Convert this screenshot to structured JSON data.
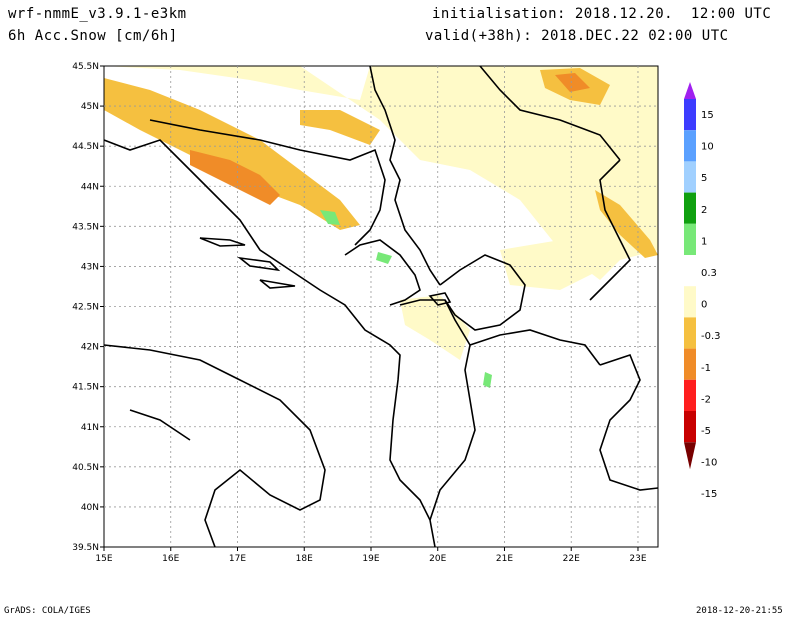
{
  "header": {
    "model": "wrf-nmmE_v3.9.1-e3km",
    "variable": "6h Acc.Snow [cm/6h]",
    "initialisation": "initialisation: 2018.12.20.  12:00 UTC",
    "valid": "valid(+38h): 2018.DEC.22 02:00 UTC"
  },
  "map": {
    "lon_ticks": [
      "15E",
      "16E",
      "17E",
      "18E",
      "19E",
      "20E",
      "21E",
      "22E",
      "23E"
    ],
    "lat_ticks": [
      "45.5N",
      "45N",
      "44.5N",
      "44N",
      "43.5N",
      "43N",
      "42.5N",
      "42N",
      "41.5N",
      "41N",
      "40.5N",
      "40N",
      "39.5N"
    ],
    "lon_range": [
      15,
      23.3
    ],
    "lat_range": [
      39.5,
      45.5
    ],
    "grid": true
  },
  "legend": {
    "labels": [
      "15",
      "10",
      "5",
      "2",
      "1",
      "0.3",
      "0",
      "-0.3",
      "-1",
      "-2",
      "-5",
      "-10",
      "-15"
    ],
    "colors": [
      "#a020f0",
      "#3c3cff",
      "#5aa0ff",
      "#a0d0ff",
      "#10a010",
      "#78e878",
      "#ffffff",
      "#fffac8",
      "#f5c040",
      "#f08c28",
      "#ff1e1e",
      "#c80000",
      "#780000"
    ]
  },
  "footer": {
    "left": "GrADS: COLA/IGES",
    "right": "2018-12-20-21:55"
  }
}
